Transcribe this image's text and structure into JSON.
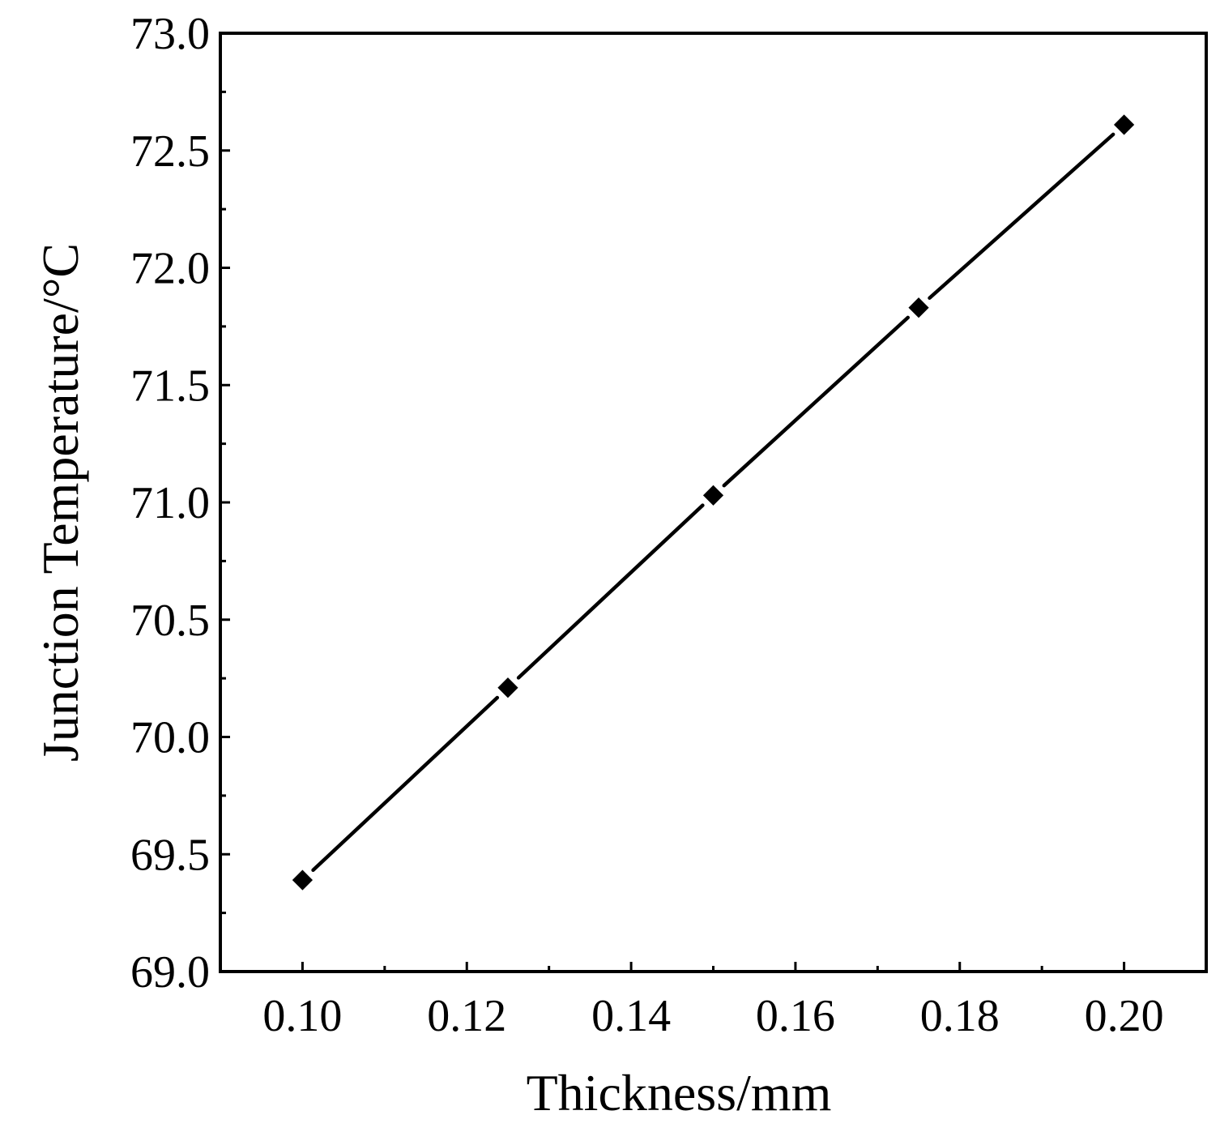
{
  "chart_data": {
    "type": "line",
    "title": "",
    "xlabel": "Thickness/mm",
    "ylabel": "Junction Temperature/°C",
    "xlim": [
      0.09,
      0.21
    ],
    "ylim": [
      69.0,
      73.0
    ],
    "x_ticks": [
      "0.10",
      "0.12",
      "0.14",
      "0.16",
      "0.18",
      "0.20"
    ],
    "x_tick_values": [
      0.1,
      0.12,
      0.14,
      0.16,
      0.18,
      0.2
    ],
    "y_ticks": [
      "69.0",
      "69.5",
      "70.0",
      "70.5",
      "71.0",
      "71.5",
      "72.0",
      "72.5",
      "73.0"
    ],
    "y_tick_values": [
      69.0,
      69.5,
      70.0,
      70.5,
      71.0,
      71.5,
      72.0,
      72.5,
      73.0
    ],
    "grid": false,
    "legend": "none",
    "series": [
      {
        "marker": "diamond",
        "color": "#000000",
        "x": [
          0.1,
          0.125,
          0.15,
          0.175,
          0.2
        ],
        "y": [
          69.39,
          70.21,
          71.03,
          71.83,
          72.61
        ]
      }
    ]
  }
}
